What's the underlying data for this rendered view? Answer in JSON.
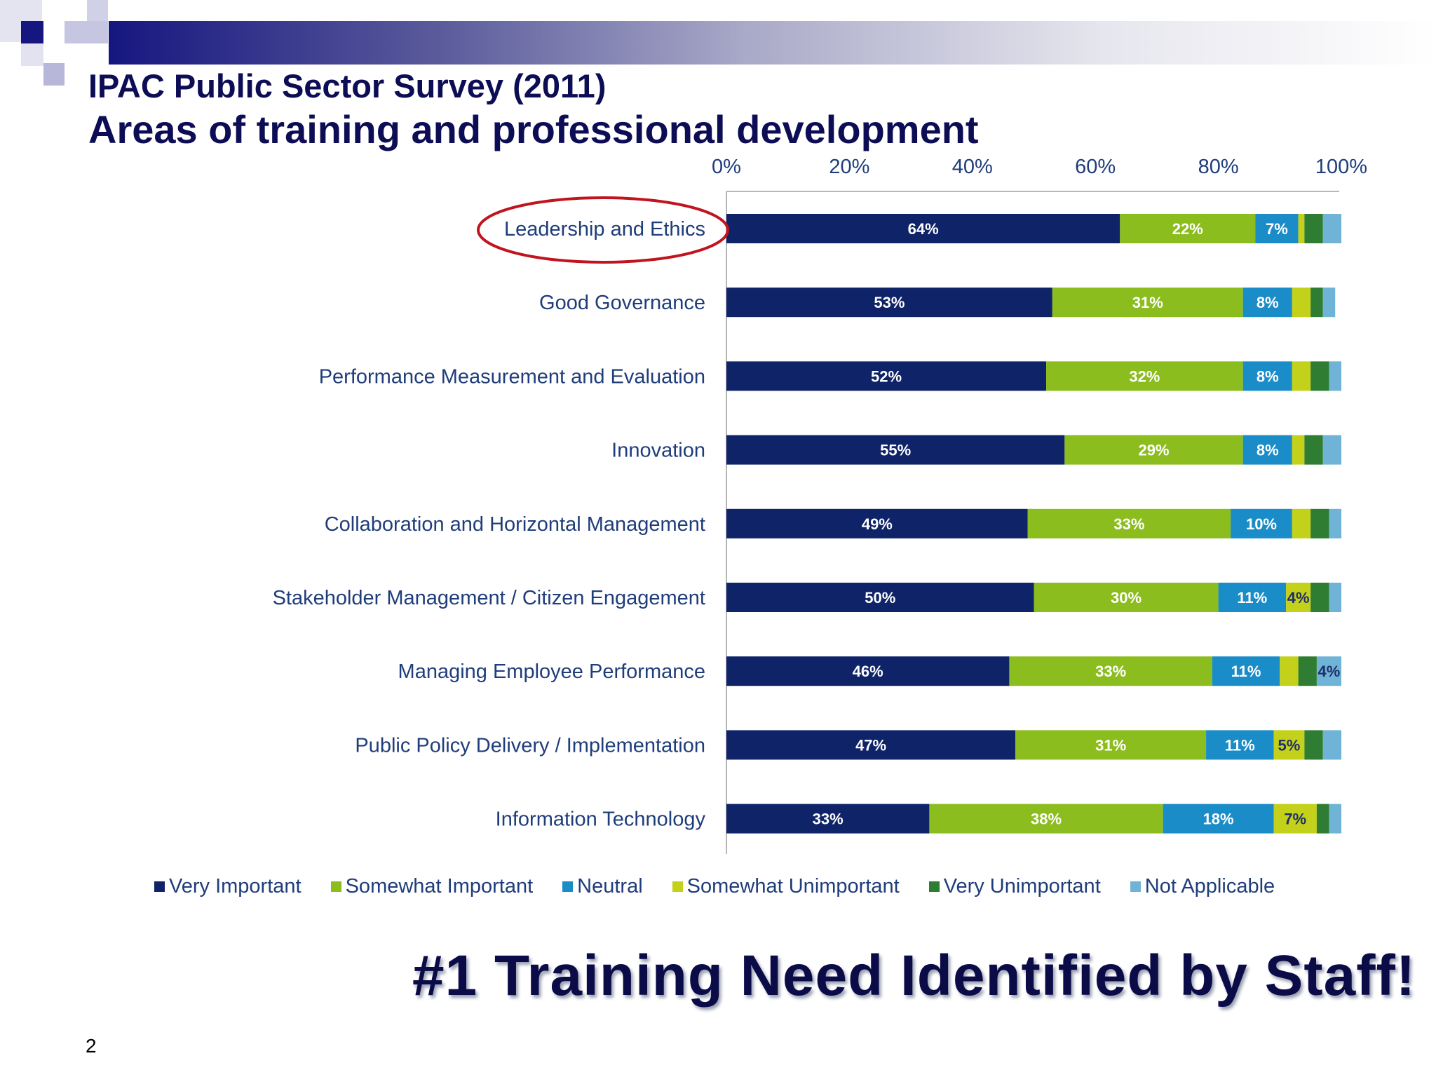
{
  "slide": {
    "title_line1": "IPAC Public Sector Survey (2011)",
    "title_line2": "Areas of training and professional development",
    "banner": "#1 Training Need Identified by Staff!",
    "page_number": "2"
  },
  "colors": {
    "very_important": "#0f2368",
    "somewhat_important": "#8bbd1e",
    "neutral": "#1a8cc8",
    "somewhat_unimportant": "#c3d11a",
    "very_unimportant": "#2e7d32",
    "not_applicable": "#6fb3d6",
    "highlight": "#c0141e"
  },
  "chart_data": {
    "type": "bar",
    "orientation": "horizontal-stacked-100",
    "highlighted_category": "Leadership and Ethics",
    "xlim": [
      0,
      100
    ],
    "x_ticks": [
      "0%",
      "20%",
      "40%",
      "60%",
      "80%",
      "100%"
    ],
    "x_tick_position": "top",
    "legend_position": "bottom",
    "categories": [
      "Leadership and Ethics",
      "Good Governance",
      "Performance Measurement and Evaluation",
      "Innovation",
      "Collaboration and Horizontal Management",
      "Stakeholder Management / Citizen Engagement",
      "Managing Employee Performance",
      "Public Policy Delivery / Implementation",
      "Information Technology"
    ],
    "series": [
      {
        "name": "Very Important",
        "values": [
          64,
          53,
          52,
          55,
          49,
          50,
          46,
          47,
          33
        ],
        "labels": [
          "64%",
          "53%",
          "52%",
          "55%",
          "49%",
          "50%",
          "46%",
          "47%",
          "33%"
        ]
      },
      {
        "name": "Somewhat Important",
        "values": [
          22,
          31,
          32,
          29,
          33,
          30,
          33,
          31,
          38
        ],
        "labels": [
          "22%",
          "31%",
          "32%",
          "29%",
          "33%",
          "30%",
          "33%",
          "31%",
          "38%"
        ]
      },
      {
        "name": "Neutral",
        "values": [
          7,
          8,
          8,
          8,
          10,
          11,
          11,
          11,
          18
        ],
        "labels": [
          "7%",
          "8%",
          "8%",
          "8%",
          "10%",
          "11%",
          "11%",
          "11%",
          "18%"
        ]
      },
      {
        "name": "Somewhat Unimportant",
        "values": [
          1,
          3,
          3,
          2,
          3,
          4,
          3,
          5,
          7
        ],
        "labels": [
          "",
          "",
          "",
          "",
          "",
          "4%",
          "",
          "5%",
          "7%"
        ]
      },
      {
        "name": "Very Unimportant",
        "values": [
          3,
          2,
          3,
          3,
          3,
          3,
          3,
          3,
          2
        ],
        "labels": [
          "",
          "",
          "",
          "",
          "",
          "",
          "",
          "",
          ""
        ]
      },
      {
        "name": "Not Applicable",
        "values": [
          3,
          2,
          2,
          3,
          2,
          2,
          4,
          3,
          2
        ],
        "labels": [
          "",
          "",
          "",
          "",
          "",
          "",
          "4%",
          "",
          ""
        ]
      }
    ]
  }
}
